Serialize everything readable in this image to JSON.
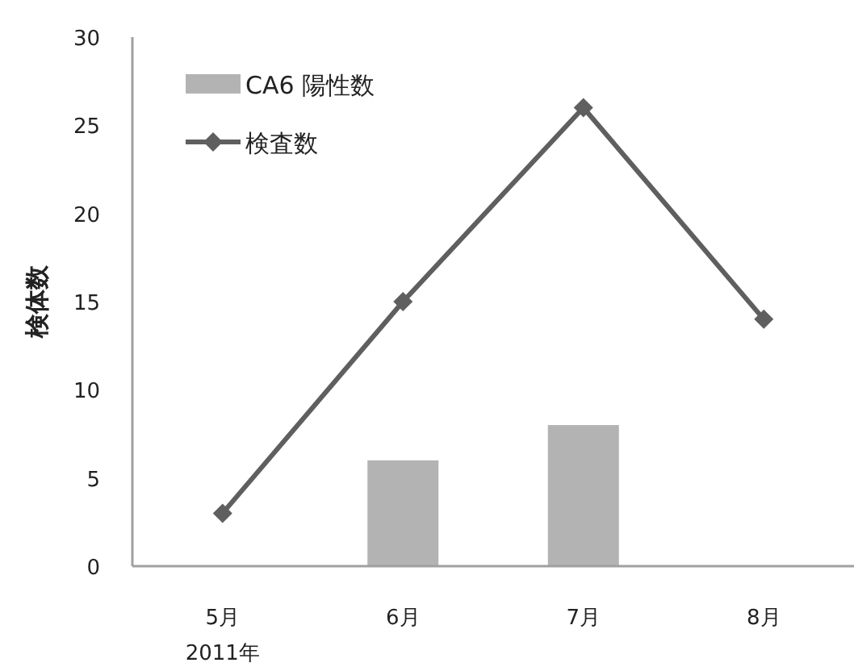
{
  "chart_data": {
    "type": "bar",
    "ylabel": "検体数",
    "categories": [
      "5月",
      "6月",
      "7月",
      "8月"
    ],
    "series": [
      {
        "name": "CA6 陽性数",
        "color": "#b3b3b3",
        "values": [
          null,
          6,
          8,
          null
        ]
      },
      {
        "name": "検査数",
        "type": "line",
        "color": "#5f5f5f",
        "marker": "diamond",
        "values": [
          3,
          15,
          26,
          14
        ]
      }
    ],
    "ylim": [
      0,
      30
    ],
    "yticks": [
      0,
      5,
      10,
      15,
      20,
      25,
      30
    ],
    "legend": "top left",
    "grid": false,
    "annotations": [
      "2011年"
    ]
  }
}
